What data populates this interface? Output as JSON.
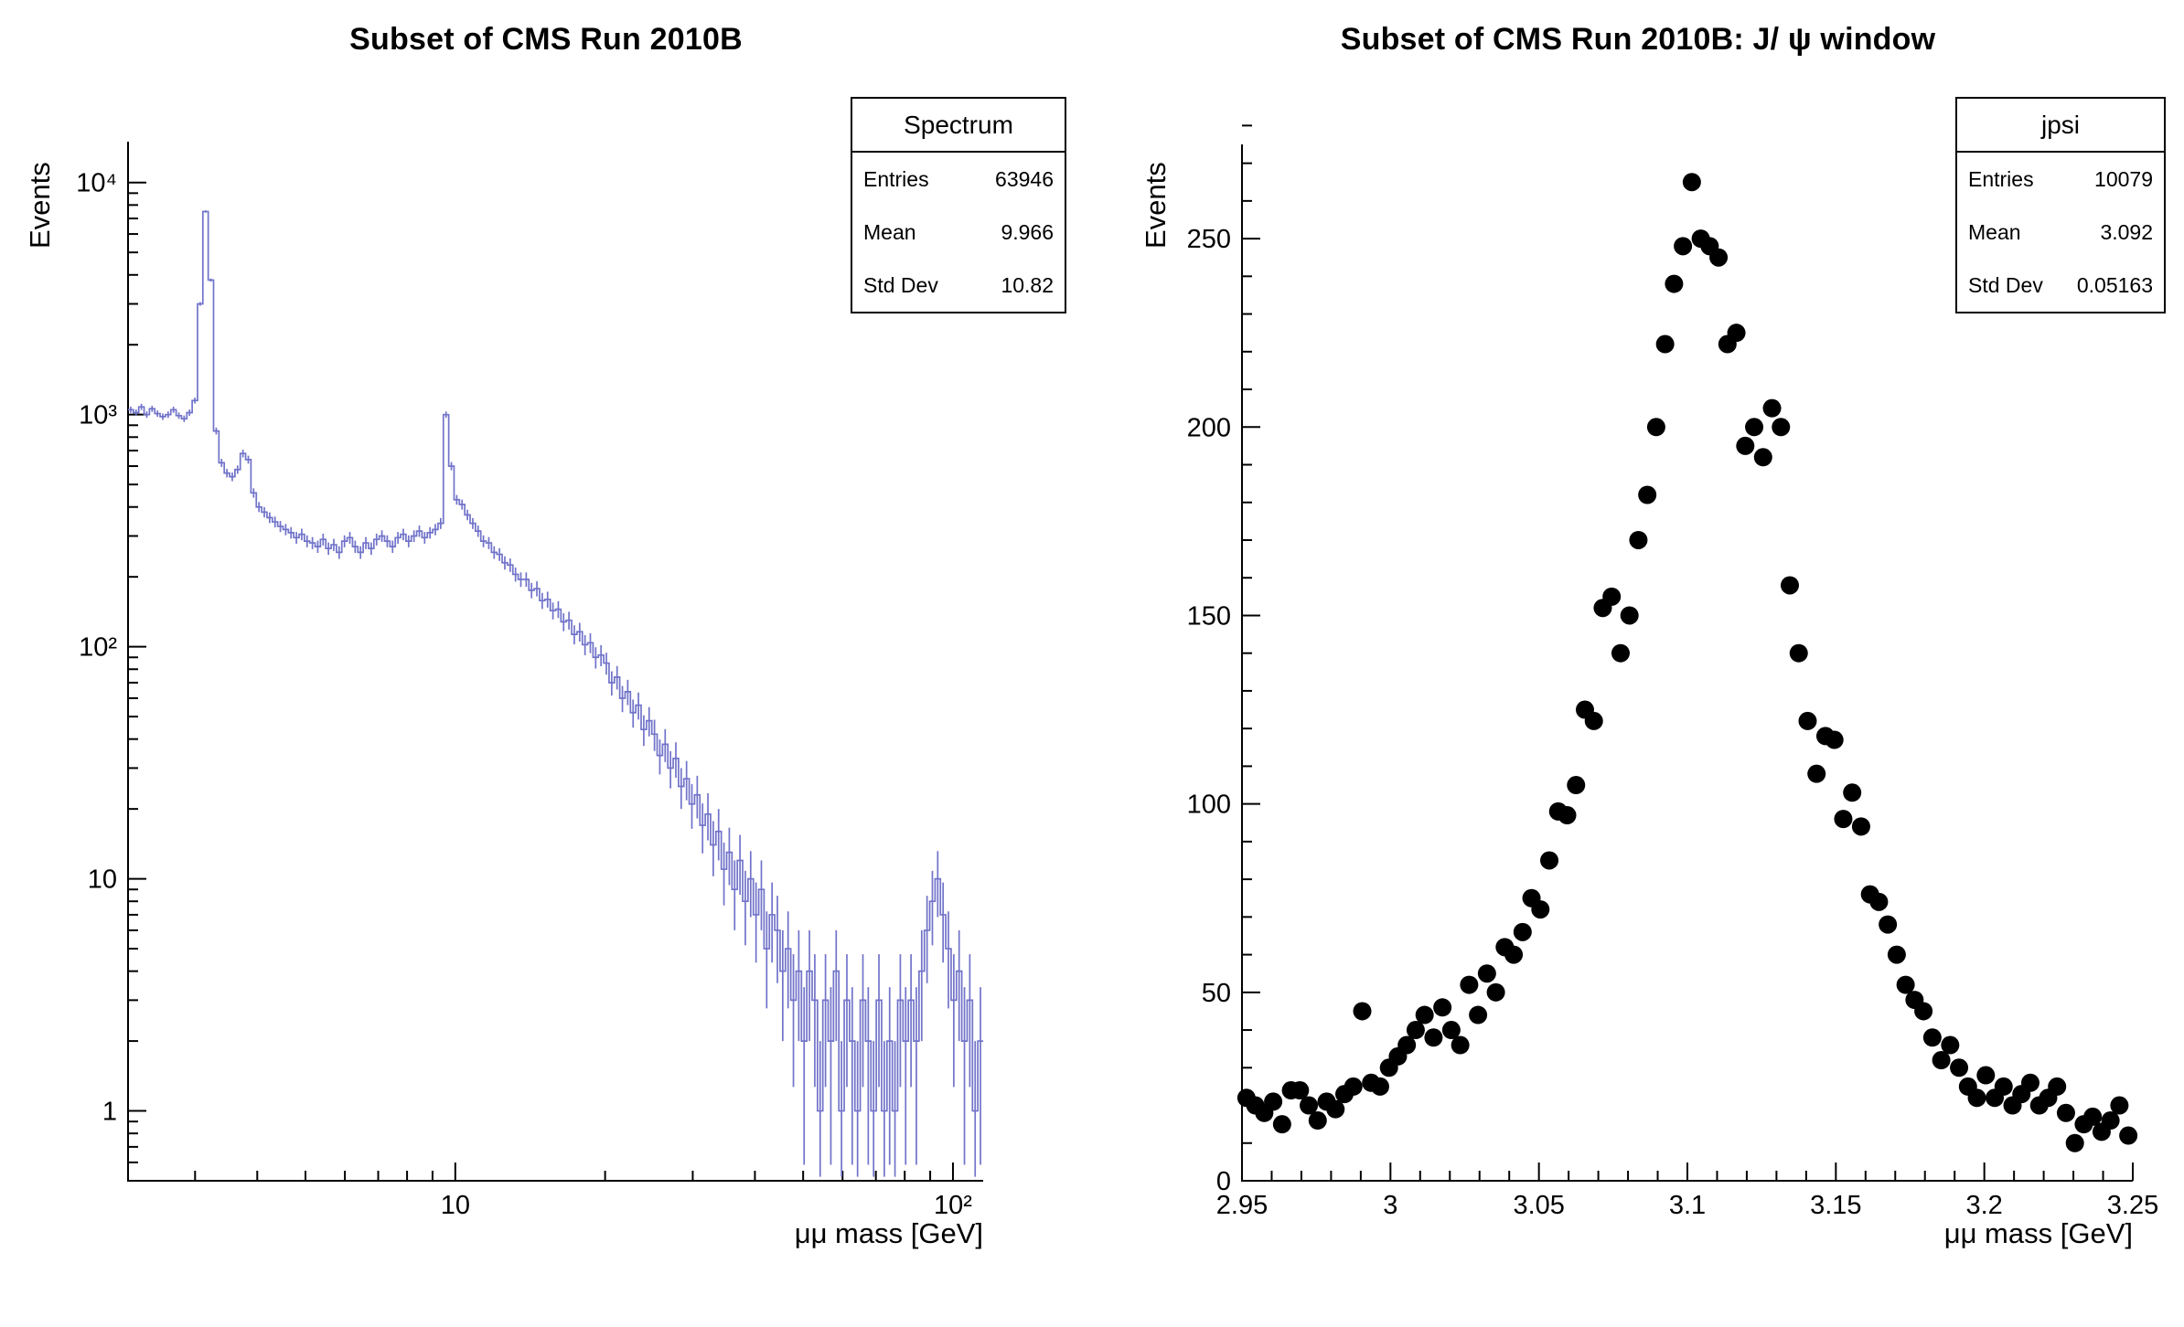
{
  "page": {
    "background": "#ffffff",
    "axis_color": "#000000"
  },
  "chart_data": [
    {
      "type": "line",
      "subtype": "step-histogram-with-errors",
      "title": "Subset of CMS Run 2010B",
      "xlabel": "μμ mass [GeV]",
      "ylabel": "Events",
      "xscale": "log",
      "yscale": "log",
      "xlim": [
        2.2,
        115
      ],
      "ylim": [
        0.5,
        15000
      ],
      "grid": false,
      "line_color": "#7173c9",
      "x_ticks": [
        {
          "v": 10,
          "label": "10"
        },
        {
          "v": 100,
          "label": "10²"
        }
      ],
      "y_ticks": [
        {
          "v": 1,
          "label": "1"
        },
        {
          "v": 10,
          "label": "10"
        },
        {
          "v": 100,
          "label": "10²"
        },
        {
          "v": 1000,
          "label": "10³"
        },
        {
          "v": 10000,
          "label": "10⁴"
        }
      ],
      "stats": {
        "title": "Spectrum",
        "rows": [
          [
            "Entries",
            "63946"
          ],
          [
            "Mean",
            "9.966"
          ],
          [
            "Std Dev",
            "10.82"
          ]
        ]
      },
      "bins": {
        "xmin": 2.2,
        "xmax": 115,
        "n": 160,
        "spacing": "log"
      },
      "values": [
        1050,
        1020,
        1080,
        1000,
        1060,
        1010,
        980,
        1000,
        1050,
        990,
        960,
        1020,
        1150,
        3000,
        7500,
        3800,
        850,
        620,
        560,
        540,
        580,
        680,
        640,
        460,
        400,
        380,
        360,
        345,
        330,
        320,
        310,
        295,
        305,
        285,
        280,
        270,
        290,
        265,
        275,
        255,
        285,
        295,
        270,
        255,
        280,
        265,
        290,
        300,
        285,
        270,
        295,
        305,
        285,
        300,
        315,
        295,
        310,
        320,
        340,
        1000,
        600,
        430,
        410,
        370,
        340,
        315,
        285,
        280,
        255,
        250,
        230,
        225,
        205,
        195,
        195,
        175,
        178,
        158,
        160,
        143,
        145,
        128,
        130,
        113,
        116,
        102,
        104,
        90,
        92,
        85,
        70,
        74,
        60,
        64,
        52,
        56,
        44,
        48,
        42,
        34,
        38,
        30,
        33,
        25,
        27,
        21,
        23,
        17,
        19,
        14,
        16,
        11,
        13,
        9,
        12,
        8,
        10,
        7,
        9,
        5,
        7,
        6,
        4,
        5,
        3,
        4,
        2,
        4,
        3,
        1,
        3,
        2,
        4,
        1,
        3,
        2,
        1,
        3,
        2,
        1,
        3,
        1,
        2,
        1,
        3,
        2,
        3,
        2,
        4,
        6,
        8,
        10,
        7,
        5,
        3,
        4,
        2,
        3,
        1,
        2
      ]
    },
    {
      "type": "scatter",
      "title": "Subset of CMS Run 2010B: J/ ψ window",
      "xlabel": "μμ mass [GeV]",
      "ylabel": "Events",
      "xscale": "linear",
      "yscale": "linear",
      "xlim": [
        2.95,
        3.25
      ],
      "ylim": [
        0,
        275
      ],
      "grid": false,
      "marker_color": "#000000",
      "marker_radius": 10,
      "x_ticks": [
        {
          "v": 2.95,
          "label": "2.95"
        },
        {
          "v": 3,
          "label": "3"
        },
        {
          "v": 3.05,
          "label": "3.05"
        },
        {
          "v": 3.1,
          "label": "3.1"
        },
        {
          "v": 3.15,
          "label": "3.15"
        },
        {
          "v": 3.2,
          "label": "3.2"
        },
        {
          "v": 3.25,
          "label": "3.25"
        }
      ],
      "y_ticks": [
        {
          "v": 0,
          "label": "0"
        },
        {
          "v": 50,
          "label": "50"
        },
        {
          "v": 100,
          "label": "100"
        },
        {
          "v": 150,
          "label": "150"
        },
        {
          "v": 200,
          "label": "200"
        },
        {
          "v": 250,
          "label": "250"
        }
      ],
      "stats": {
        "title": "jpsi",
        "rows": [
          [
            "Entries",
            "10079"
          ],
          [
            "Mean",
            "3.092"
          ],
          [
            "Std Dev",
            "0.05163"
          ]
        ]
      },
      "x_start": 2.9515,
      "x_step": 0.003,
      "values": [
        22,
        20,
        18,
        21,
        15,
        24,
        24,
        20,
        16,
        21,
        19,
        23,
        25,
        45,
        26,
        25,
        30,
        33,
        36,
        40,
        44,
        38,
        46,
        40,
        36,
        52,
        44,
        55,
        50,
        62,
        60,
        66,
        75,
        72,
        85,
        98,
        97,
        105,
        125,
        122,
        152,
        155,
        140,
        150,
        170,
        182,
        200,
        222,
        238,
        248,
        265,
        250,
        248,
        245,
        222,
        225,
        195,
        200,
        192,
        205,
        200,
        158,
        140,
        122,
        108,
        118,
        117,
        96,
        103,
        94,
        76,
        74,
        68,
        60,
        52,
        48,
        45,
        38,
        32,
        36,
        30,
        25,
        22,
        28,
        22,
        25,
        20,
        23,
        26,
        20,
        22,
        25,
        18,
        10,
        15,
        17,
        13,
        16,
        20,
        12
      ]
    }
  ]
}
